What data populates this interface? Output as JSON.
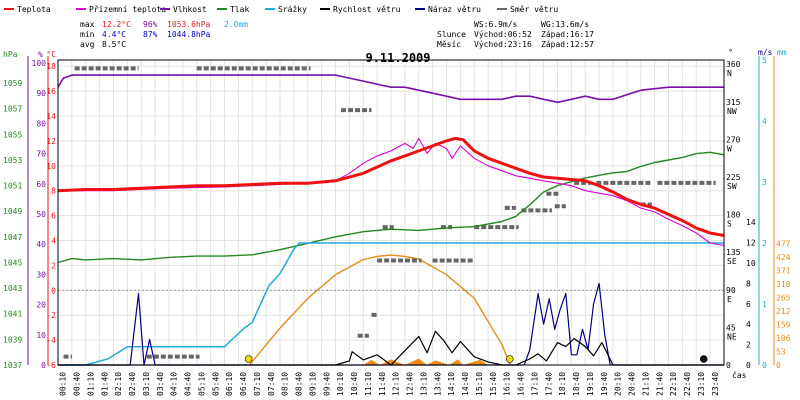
{
  "chart_data": {
    "type": "line",
    "title": "9.11.2009",
    "legend": [
      {
        "label": "Teplota",
        "color": "#ee1111"
      },
      {
        "label": "Přízemní teplota",
        "color": "#dd00dd"
      },
      {
        "label": "Vlhkost",
        "color": "#7711aa"
      },
      {
        "label": "Tlak",
        "color": "#228822"
      },
      {
        "label": "Srážky",
        "color": "#22aadd"
      },
      {
        "label": "Rychlost větru",
        "color": "#000000"
      },
      {
        "label": "Náraz větru",
        "color": "#000088"
      },
      {
        "label": "Směr větru",
        "color": "#666666"
      }
    ],
    "stats": {
      "rows": [
        {
          "label": "max",
          "temp": "12.2°C",
          "hum": "96%",
          "press": "1053.6hPa",
          "rain": "2.0mm"
        },
        {
          "label": "min",
          "temp": "4.4°C",
          "hum": "87%",
          "press": "1044.8hPa",
          "rain": ""
        },
        {
          "label": "avg",
          "temp": "8.5°C",
          "hum": "",
          "press": "",
          "rain": ""
        }
      ],
      "wind_avg": "WS:6.9m/s",
      "wind_gust": "WG:13.6m/s",
      "sun": {
        "label": "Slunce",
        "rise": "Východ:06:52",
        "set": "Západ:16:17"
      },
      "moon": {
        "label": "Měsíc",
        "rise": "Východ:23:16",
        "set": "Západ:12:57"
      }
    },
    "axes": {
      "hpa": {
        "unit": "hPa",
        "ticks": [
          1037,
          1039,
          1041,
          1043,
          1045,
          1047,
          1049,
          1051,
          1053,
          1055,
          1057,
          1059
        ]
      },
      "pct": {
        "unit": "%",
        "ticks": [
          0,
          10,
          20,
          30,
          40,
          50,
          60,
          70,
          80,
          90,
          100
        ]
      },
      "temp": {
        "unit": "°C",
        "ticks": [
          -6,
          -4,
          -2,
          0,
          2,
          4,
          6,
          8,
          10,
          12,
          14,
          16,
          18
        ]
      },
      "dir": {
        "unit": "°",
        "ticks": [
          {
            "v": 0,
            "l": "0"
          },
          {
            "v": 45,
            "l": "45",
            "c": "NE"
          },
          {
            "v": 90,
            "l": "90",
            "c": "E"
          },
          {
            "v": 135,
            "l": "135",
            "c": "SE"
          },
          {
            "v": 180,
            "l": "180",
            "c": "S"
          },
          {
            "v": 225,
            "l": "225",
            "c": "SW"
          },
          {
            "v": 270,
            "l": "270",
            "c": "W"
          },
          {
            "v": 315,
            "l": "315",
            "c": "NW"
          },
          {
            "v": 360,
            "l": "360",
            "c": "N"
          }
        ]
      },
      "ms": {
        "unit": "m/s",
        "ticks": [
          0,
          2,
          4,
          6,
          8,
          10,
          12,
          14
        ]
      },
      "mm": {
        "unit": "mm",
        "ticks": [
          0,
          1,
          2,
          3,
          4,
          5
        ]
      },
      "rad": {
        "unit": "",
        "ticks": [
          0,
          53,
          106,
          159,
          212,
          265,
          318,
          371,
          424,
          477
        ]
      },
      "x_label": "čas",
      "time_ticks": [
        "00:10",
        "00:40",
        "01:10",
        "01:40",
        "02:10",
        "02:40",
        "03:10",
        "03:40",
        "04:10",
        "04:40",
        "05:10",
        "05:40",
        "06:10",
        "06:40",
        "07:10",
        "07:40",
        "08:10",
        "08:40",
        "09:10",
        "09:40",
        "10:10",
        "10:40",
        "11:10",
        "11:40",
        "12:10",
        "12:40",
        "13:10",
        "13:40",
        "14:10",
        "14:40",
        "15:10",
        "15:40",
        "16:10",
        "16:40",
        "17:10",
        "17:40",
        "18:10",
        "18:40",
        "19:10",
        "19:40",
        "20:10",
        "20:40",
        "21:10",
        "21:40",
        "22:10",
        "22:40",
        "23:10",
        "23:40"
      ],
      "x_range": [
        0,
        24
      ]
    },
    "series": {
      "temperature": {
        "x": [
          0,
          1,
          2,
          3,
          4,
          5,
          6,
          7,
          8,
          9,
          10,
          11,
          12,
          12.5,
          13,
          13.5,
          14,
          14.3,
          14.6,
          15,
          15.5,
          16,
          16.5,
          17,
          17.5,
          18,
          18.5,
          19,
          19.5,
          20,
          20.5,
          21,
          21.5,
          22,
          22.5,
          23,
          23.5,
          24
        ],
        "y": [
          8.0,
          8.1,
          8.1,
          8.2,
          8.3,
          8.4,
          8.4,
          8.5,
          8.6,
          8.6,
          8.8,
          9.4,
          10.4,
          10.8,
          11.2,
          11.6,
          12.0,
          12.2,
          12.1,
          11.2,
          10.6,
          10.2,
          9.8,
          9.4,
          9.1,
          9.0,
          8.9,
          8.8,
          8.4,
          7.9,
          7.3,
          6.9,
          6.6,
          6.1,
          5.6,
          5.0,
          4.6,
          4.4
        ]
      },
      "ground_temperature": {
        "x": [
          0,
          2,
          4,
          6,
          8,
          9,
          10,
          10.5,
          11,
          11.5,
          12,
          12.5,
          12.8,
          13,
          13.3,
          13.6,
          14,
          14.2,
          14.5,
          15,
          15.5,
          16,
          16.5,
          17,
          17.5,
          18,
          18.5,
          19,
          19.5,
          20,
          20.5,
          21,
          21.5,
          22,
          22.5,
          23,
          23.5,
          24
        ],
        "y": [
          8.0,
          8.0,
          8.2,
          8.3,
          8.5,
          8.6,
          8.8,
          9.4,
          10.2,
          10.8,
          11.2,
          11.8,
          11.4,
          12.2,
          11.0,
          11.8,
          11.4,
          10.6,
          11.6,
          10.6,
          10.0,
          9.6,
          9.2,
          9.0,
          8.8,
          8.6,
          8.4,
          8.0,
          7.8,
          7.6,
          7.2,
          6.6,
          6.3,
          5.7,
          5.2,
          4.6,
          3.8,
          3.6
        ]
      },
      "humidity": {
        "x": [
          0,
          0.2,
          0.5,
          1,
          2,
          3,
          4,
          5,
          6,
          7,
          8,
          9,
          10,
          10.5,
          11,
          11.5,
          12,
          12.5,
          13,
          13.5,
          14,
          14.5,
          15,
          15.5,
          16,
          16.5,
          17,
          17.5,
          18,
          18.5,
          19,
          19.5,
          20,
          21,
          22,
          23,
          24
        ],
        "y": [
          92.0,
          95.0,
          96.0,
          96.0,
          96.0,
          96.0,
          96.0,
          96.0,
          96.0,
          96.0,
          96.0,
          96.0,
          96.0,
          95.0,
          94.0,
          93.0,
          92.0,
          92.0,
          91.0,
          90.0,
          89.0,
          88.0,
          88.0,
          88.0,
          88.0,
          89.0,
          89.0,
          88.0,
          87.0,
          88.0,
          89.0,
          88.0,
          88.0,
          91.0,
          92.0,
          92.0,
          92.0
        ]
      },
      "pressure": {
        "x": [
          0,
          0.5,
          1,
          2,
          3,
          4,
          5,
          6,
          7,
          8,
          9,
          10,
          11,
          12,
          13,
          14,
          15,
          16,
          16.5,
          17,
          17.5,
          18,
          18.5,
          19,
          19.5,
          20,
          20.5,
          21,
          21.5,
          22,
          22.5,
          23,
          23.5,
          24
        ],
        "y": [
          1045.0,
          1045.3,
          1045.2,
          1045.3,
          1045.2,
          1045.4,
          1045.5,
          1045.5,
          1045.6,
          1046.0,
          1046.5,
          1047.0,
          1047.4,
          1047.6,
          1047.5,
          1047.7,
          1047.8,
          1048.2,
          1048.6,
          1049.5,
          1050.5,
          1051.0,
          1051.3,
          1051.6,
          1051.8,
          1052.0,
          1052.1,
          1052.5,
          1052.8,
          1053.0,
          1053.2,
          1053.5,
          1053.6,
          1053.4
        ]
      },
      "rain_cumulative": {
        "x": [
          0,
          1,
          1.8,
          2.5,
          3,
          5,
          6,
          6.7,
          7,
          7.6,
          8,
          8.5,
          8.7,
          9.5,
          10,
          24
        ],
        "y": [
          0.0,
          0.0,
          0.1,
          0.3,
          0.3,
          0.3,
          0.3,
          0.6,
          0.7,
          1.3,
          1.5,
          1.9,
          2.0,
          2.0,
          2.0,
          2.0
        ]
      },
      "wind_speed": {
        "x": [
          0,
          10,
          10.5,
          10.6,
          11,
          11.5,
          12,
          12.5,
          13,
          13.3,
          13.6,
          13.9,
          14.2,
          14.5,
          15,
          15.5,
          16,
          16.5,
          17,
          17.3,
          17.6,
          18,
          18.3,
          18.6,
          19,
          19.3,
          19.6,
          20,
          24
        ],
        "y": [
          0.0,
          0.0,
          0.4,
          1.3,
          0.5,
          1.0,
          0.0,
          1.4,
          2.8,
          1.2,
          3.3,
          2.4,
          1.2,
          2.3,
          0.8,
          0.3,
          0.0,
          0.0,
          0.6,
          1.1,
          0.4,
          2.2,
          1.8,
          2.6,
          1.8,
          0.9,
          2.2,
          0.0,
          0.0
        ]
      },
      "wind_gust": {
        "x": [
          0,
          2.6,
          2.9,
          3.1,
          3.3,
          3.5,
          10,
          16.8,
          17,
          17.3,
          17.5,
          17.7,
          17.9,
          18.1,
          18.3,
          18.5,
          18.7,
          18.9,
          19.1,
          19.3,
          19.5,
          19.7,
          19.9,
          24
        ],
        "y": [
          0.0,
          0.0,
          7.0,
          0.0,
          2.5,
          0.0,
          0.0,
          0.0,
          1.5,
          7.0,
          4.0,
          6.5,
          3.5,
          5.5,
          7.0,
          1.0,
          1.0,
          3.5,
          1.5,
          6.0,
          8.0,
          3.0,
          0.0,
          0.0
        ]
      },
      "wind_direction": [
        {
          "x0": 0.6,
          "x1": 2.9,
          "deg": 355
        },
        {
          "x0": 5.0,
          "x1": 9.1,
          "deg": 355
        },
        {
          "x0": 10.2,
          "x1": 11.3,
          "deg": 305
        },
        {
          "x0": 3.2,
          "x1": 5.1,
          "deg": 10
        },
        {
          "x0": 0.2,
          "x1": 0.5,
          "deg": 10
        },
        {
          "x0": 10.8,
          "x1": 11.2,
          "deg": 35
        },
        {
          "x0": 11.3,
          "x1": 11.5,
          "deg": 60
        },
        {
          "x0": 11.5,
          "x1": 12.0,
          "deg": 125
        },
        {
          "x0": 12.0,
          "x1": 13.1,
          "deg": 125
        },
        {
          "x0": 11.7,
          "x1": 12.1,
          "deg": 165
        },
        {
          "x0": 13.5,
          "x1": 15.0,
          "deg": 125
        },
        {
          "x0": 15.0,
          "x1": 16.6,
          "deg": 165
        },
        {
          "x0": 16.7,
          "x1": 17.8,
          "deg": 185
        },
        {
          "x0": 17.6,
          "x1": 18.1,
          "deg": 205
        },
        {
          "x0": 18.6,
          "x1": 19.2,
          "deg": 218
        },
        {
          "x0": 19.4,
          "x1": 21.4,
          "deg": 218
        },
        {
          "x0": 21.6,
          "x1": 23.7,
          "deg": 218
        },
        {
          "x0": 21.0,
          "x1": 21.4,
          "deg": 192
        },
        {
          "x0": 17.9,
          "x1": 18.3,
          "deg": 190
        },
        {
          "x0": 16.1,
          "x1": 16.5,
          "deg": 188
        },
        {
          "x0": 13.8,
          "x1": 14.2,
          "deg": 165
        }
      ],
      "solar_radiation": {
        "x": [
          6.9,
          8,
          9,
          10,
          11,
          11.5,
          12,
          12.5,
          13,
          14,
          15,
          16,
          16.3
        ],
        "y": [
          0,
          145,
          262,
          355,
          415,
          427,
          432,
          427,
          417,
          355,
          262,
          80,
          0
        ]
      },
      "sun_hours": {
        "x": [
          11.0,
          11.3,
          11.6,
          12.0,
          12.5,
          13.0,
          13.3,
          13.6,
          14.1,
          14.4,
          14.6,
          15.2,
          15.5
        ],
        "y": [
          0,
          20,
          0,
          22,
          0,
          25,
          0,
          18,
          0,
          22,
          0,
          20,
          0
        ]
      },
      "markers": [
        {
          "x": 6.87,
          "color": "#eedd00",
          "kind": "sunrise"
        },
        {
          "x": 16.28,
          "color": "#eedd00",
          "kind": "sunset"
        },
        {
          "x": 23.27,
          "color": "#111111",
          "kind": "moonrise"
        }
      ]
    }
  }
}
